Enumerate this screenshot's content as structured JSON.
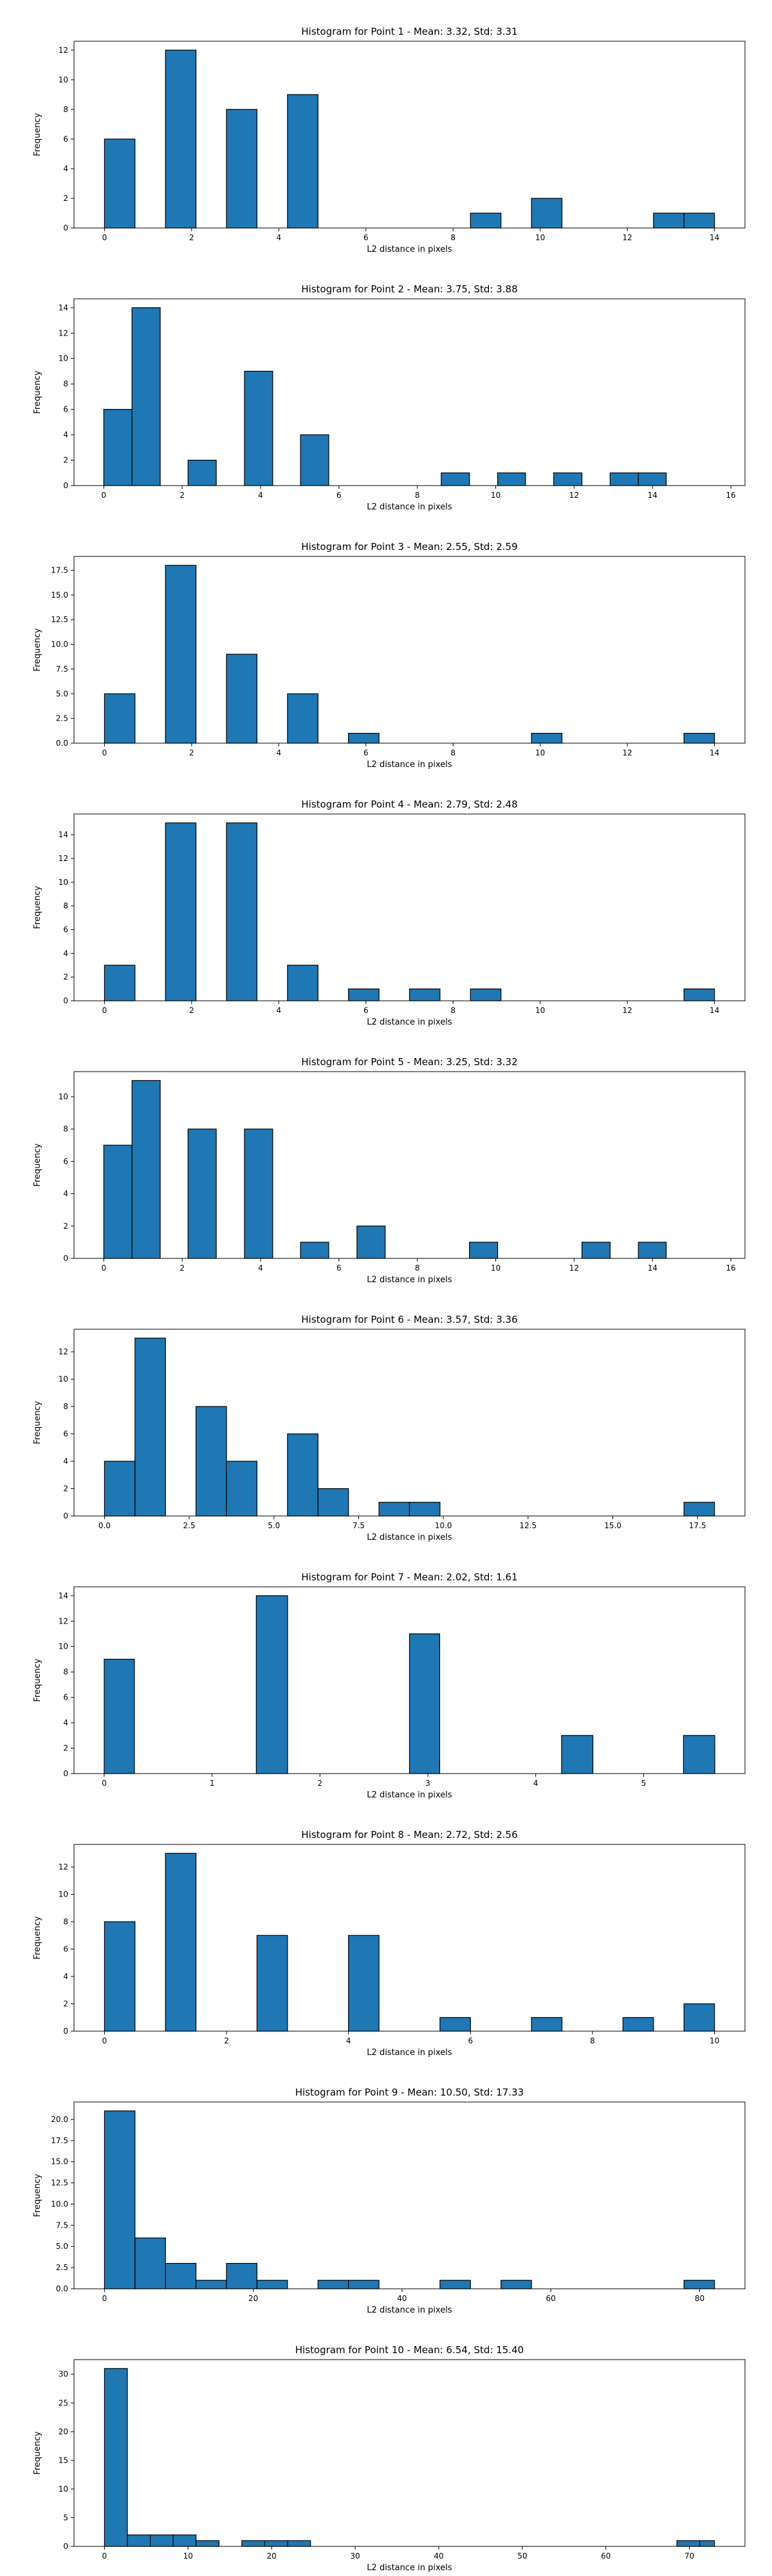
{
  "chart_data": [
    {
      "type": "bar",
      "title": "Histogram for Point 1 - Mean: 3.32, Std: 3.31",
      "xlabel": "L2 distance in pixels",
      "ylabel": "Frequency",
      "xlim": [
        -0.7,
        14.7
      ],
      "ylim": [
        0,
        12.6
      ],
      "xticks": [
        0,
        2,
        4,
        6,
        8,
        10,
        12,
        14
      ],
      "xtick_labels": [
        "0",
        "2",
        "4",
        "6",
        "8",
        "10",
        "12",
        "14"
      ],
      "yticks": [
        0,
        2,
        4,
        6,
        8,
        10,
        12
      ],
      "ytick_labels": [
        "0",
        "2",
        "4",
        "6",
        "8",
        "10",
        "12"
      ],
      "bar_color": "#1f77b4",
      "bars": [
        {
          "x0": 0.0,
          "x1": 0.7,
          "value": 6
        },
        {
          "x0": 1.4,
          "x1": 2.1,
          "value": 12
        },
        {
          "x0": 2.8,
          "x1": 3.5,
          "value": 8
        },
        {
          "x0": 4.2,
          "x1": 4.9,
          "value": 9
        },
        {
          "x0": 8.4,
          "x1": 9.1,
          "value": 1
        },
        {
          "x0": 9.8,
          "x1": 10.5,
          "value": 2
        },
        {
          "x0": 12.6,
          "x1": 13.3,
          "value": 1
        },
        {
          "x0": 13.3,
          "x1": 14.0,
          "value": 1
        }
      ]
    },
    {
      "type": "bar",
      "title": "Histogram for Point 2 - Mean: 3.75, Std: 3.88",
      "xlabel": "L2 distance in pixels",
      "ylabel": "Frequency",
      "xlim": [
        -0.76,
        16.36
      ],
      "ylim": [
        0,
        14.7
      ],
      "xticks": [
        0,
        2,
        4,
        6,
        8,
        10,
        12,
        14,
        16
      ],
      "xtick_labels": [
        "0",
        "2",
        "4",
        "6",
        "8",
        "10",
        "12",
        "14",
        "16"
      ],
      "yticks": [
        0,
        2,
        4,
        6,
        8,
        10,
        12,
        14
      ],
      "ytick_labels": [
        "0",
        "2",
        "4",
        "6",
        "8",
        "10",
        "12",
        "14"
      ],
      "bar_color": "#1f77b4",
      "bars": [
        {
          "x0": 0.0,
          "x1": 0.72,
          "value": 6
        },
        {
          "x0": 0.72,
          "x1": 1.44,
          "value": 14
        },
        {
          "x0": 2.15,
          "x1": 2.87,
          "value": 2
        },
        {
          "x0": 3.59,
          "x1": 4.31,
          "value": 9
        },
        {
          "x0": 5.02,
          "x1": 5.74,
          "value": 4
        },
        {
          "x0": 8.61,
          "x1": 9.33,
          "value": 1
        },
        {
          "x0": 10.05,
          "x1": 10.76,
          "value": 1
        },
        {
          "x0": 11.48,
          "x1": 12.2,
          "value": 1
        },
        {
          "x0": 12.92,
          "x1": 13.64,
          "value": 1
        },
        {
          "x0": 13.64,
          "x1": 14.35,
          "value": 1
        }
      ]
    },
    {
      "type": "bar",
      "title": "Histogram for Point 3 - Mean: 2.55, Std: 2.59",
      "xlabel": "L2 distance in pixels",
      "ylabel": "Frequency",
      "xlim": [
        -0.7,
        14.7
      ],
      "ylim": [
        0,
        18.9
      ],
      "xticks": [
        0,
        2,
        4,
        6,
        8,
        10,
        12,
        14
      ],
      "xtick_labels": [
        "0",
        "2",
        "4",
        "6",
        "8",
        "10",
        "12",
        "14"
      ],
      "yticks": [
        0,
        2.5,
        5,
        7.5,
        10,
        12.5,
        15,
        17.5
      ],
      "ytick_labels": [
        "0.0",
        "2.5",
        "5.0",
        "7.5",
        "10.0",
        "12.5",
        "15.0",
        "17.5"
      ],
      "bar_color": "#1f77b4",
      "bars": [
        {
          "x0": 0.0,
          "x1": 0.7,
          "value": 5
        },
        {
          "x0": 1.4,
          "x1": 2.1,
          "value": 18
        },
        {
          "x0": 2.8,
          "x1": 3.5,
          "value": 9
        },
        {
          "x0": 4.2,
          "x1": 4.9,
          "value": 5
        },
        {
          "x0": 5.6,
          "x1": 6.3,
          "value": 1
        },
        {
          "x0": 9.8,
          "x1": 10.5,
          "value": 1
        },
        {
          "x0": 13.3,
          "x1": 14.0,
          "value": 1
        }
      ]
    },
    {
      "type": "bar",
      "title": "Histogram for Point 4 - Mean: 2.79, Std: 2.48",
      "xlabel": "L2 distance in pixels",
      "ylabel": "Frequency",
      "xlim": [
        -0.7,
        14.7
      ],
      "ylim": [
        0,
        15.75
      ],
      "xticks": [
        0,
        2,
        4,
        6,
        8,
        10,
        12,
        14
      ],
      "xtick_labels": [
        "0",
        "2",
        "4",
        "6",
        "8",
        "10",
        "12",
        "14"
      ],
      "yticks": [
        0,
        2,
        4,
        6,
        8,
        10,
        12,
        14
      ],
      "ytick_labels": [
        "0",
        "2",
        "4",
        "6",
        "8",
        "10",
        "12",
        "14"
      ],
      "bar_color": "#1f77b4",
      "bars": [
        {
          "x0": 0.0,
          "x1": 0.7,
          "value": 3
        },
        {
          "x0": 1.4,
          "x1": 2.1,
          "value": 15
        },
        {
          "x0": 2.8,
          "x1": 3.5,
          "value": 15
        },
        {
          "x0": 4.2,
          "x1": 4.9,
          "value": 3
        },
        {
          "x0": 5.6,
          "x1": 6.3,
          "value": 1
        },
        {
          "x0": 7.0,
          "x1": 7.7,
          "value": 1
        },
        {
          "x0": 8.4,
          "x1": 9.1,
          "value": 1
        },
        {
          "x0": 13.3,
          "x1": 14.0,
          "value": 1
        }
      ]
    },
    {
      "type": "bar",
      "title": "Histogram for Point 5 - Mean: 3.25, Std: 3.32",
      "xlabel": "L2 distance in pixels",
      "ylabel": "Frequency",
      "xlim": [
        -0.76,
        16.36
      ],
      "ylim": [
        0,
        11.55
      ],
      "xticks": [
        0,
        2,
        4,
        6,
        8,
        10,
        12,
        14,
        16
      ],
      "xtick_labels": [
        "0",
        "2",
        "4",
        "6",
        "8",
        "10",
        "12",
        "14",
        "16"
      ],
      "yticks": [
        0,
        2,
        4,
        6,
        8,
        10
      ],
      "ytick_labels": [
        "0",
        "2",
        "4",
        "6",
        "8",
        "10"
      ],
      "bar_color": "#1f77b4",
      "bars": [
        {
          "x0": 0.0,
          "x1": 0.72,
          "value": 7
        },
        {
          "x0": 0.72,
          "x1": 1.44,
          "value": 11
        },
        {
          "x0": 2.15,
          "x1": 2.87,
          "value": 8
        },
        {
          "x0": 3.59,
          "x1": 4.31,
          "value": 8
        },
        {
          "x0": 5.02,
          "x1": 5.74,
          "value": 1
        },
        {
          "x0": 6.46,
          "x1": 7.18,
          "value": 2
        },
        {
          "x0": 9.33,
          "x1": 10.05,
          "value": 1
        },
        {
          "x0": 12.2,
          "x1": 12.92,
          "value": 1
        },
        {
          "x0": 13.64,
          "x1": 14.35,
          "value": 1
        }
      ]
    },
    {
      "type": "bar",
      "title": "Histogram for Point 6 - Mean: 3.57, Std: 3.36",
      "xlabel": "L2 distance in pixels",
      "ylabel": "Frequency",
      "xlim": [
        -0.9,
        18.9
      ],
      "ylim": [
        0,
        13.65
      ],
      "xticks": [
        0,
        2.5,
        5,
        7.5,
        10,
        12.5,
        15,
        17.5
      ],
      "xtick_labels": [
        "0.0",
        "2.5",
        "5.0",
        "7.5",
        "10.0",
        "12.5",
        "15.0",
        "17.5"
      ],
      "yticks": [
        0,
        2,
        4,
        6,
        8,
        10,
        12
      ],
      "ytick_labels": [
        "0",
        "2",
        "4",
        "6",
        "8",
        "10",
        "12"
      ],
      "bar_color": "#1f77b4",
      "bars": [
        {
          "x0": 0.0,
          "x1": 0.9,
          "value": 4
        },
        {
          "x0": 0.9,
          "x1": 1.8,
          "value": 13
        },
        {
          "x0": 2.7,
          "x1": 3.6,
          "value": 8
        },
        {
          "x0": 3.6,
          "x1": 4.5,
          "value": 4
        },
        {
          "x0": 5.4,
          "x1": 6.3,
          "value": 6
        },
        {
          "x0": 6.3,
          "x1": 7.2,
          "value": 2
        },
        {
          "x0": 8.1,
          "x1": 9.0,
          "value": 1
        },
        {
          "x0": 9.0,
          "x1": 9.9,
          "value": 1
        },
        {
          "x0": 17.1,
          "x1": 18.0,
          "value": 1
        }
      ]
    },
    {
      "type": "bar",
      "title": "Histogram for Point 7 - Mean: 2.02, Std: 1.61",
      "xlabel": "L2 distance in pixels",
      "ylabel": "Frequency",
      "xlim": [
        -0.28,
        5.94
      ],
      "ylim": [
        0,
        14.7
      ],
      "xticks": [
        0,
        1,
        2,
        3,
        4,
        5
      ],
      "xtick_labels": [
        "0",
        "1",
        "2",
        "3",
        "4",
        "5"
      ],
      "yticks": [
        0,
        2,
        4,
        6,
        8,
        10,
        12,
        14
      ],
      "ytick_labels": [
        "0",
        "2",
        "4",
        "6",
        "8",
        "10",
        "12",
        "14"
      ],
      "bar_color": "#1f77b4",
      "bars": [
        {
          "x0": 0.0,
          "x1": 0.28,
          "value": 9
        },
        {
          "x0": 1.41,
          "x1": 1.7,
          "value": 14
        },
        {
          "x0": 2.83,
          "x1": 3.11,
          "value": 11
        },
        {
          "x0": 4.24,
          "x1": 4.53,
          "value": 3
        },
        {
          "x0": 5.37,
          "x1": 5.66,
          "value": 3
        }
      ]
    },
    {
      "type": "bar",
      "title": "Histogram for Point 8 - Mean: 2.72, Std: 2.56",
      "xlabel": "L2 distance in pixels",
      "ylabel": "Frequency",
      "xlim": [
        -0.5,
        10.5
      ],
      "ylim": [
        0,
        13.65
      ],
      "xticks": [
        0,
        2,
        4,
        6,
        8,
        10
      ],
      "xtick_labels": [
        "0",
        "2",
        "4",
        "6",
        "8",
        "10"
      ],
      "yticks": [
        0,
        2,
        4,
        6,
        8,
        10,
        12
      ],
      "ytick_labels": [
        "0",
        "2",
        "4",
        "6",
        "8",
        "10",
        "12"
      ],
      "bar_color": "#1f77b4",
      "bars": [
        {
          "x0": 0.0,
          "x1": 0.5,
          "value": 8
        },
        {
          "x0": 1.0,
          "x1": 1.5,
          "value": 13
        },
        {
          "x0": 2.5,
          "x1": 3.0,
          "value": 7
        },
        {
          "x0": 4.0,
          "x1": 4.5,
          "value": 7
        },
        {
          "x0": 5.5,
          "x1": 6.0,
          "value": 1
        },
        {
          "x0": 7.0,
          "x1": 7.5,
          "value": 1
        },
        {
          "x0": 8.5,
          "x1": 9.0,
          "value": 1
        },
        {
          "x0": 9.5,
          "x1": 10.0,
          "value": 2
        }
      ]
    },
    {
      "type": "bar",
      "title": "Histogram for Point 9 - Mean: 10.50, Std: 17.33",
      "xlabel": "L2 distance in pixels",
      "ylabel": "Frequency",
      "xlim": [
        -4.1,
        86.1
      ],
      "ylim": [
        0,
        22.05
      ],
      "xticks": [
        0,
        20,
        40,
        60,
        80
      ],
      "xtick_labels": [
        "0",
        "20",
        "40",
        "60",
        "80"
      ],
      "yticks": [
        0,
        2.5,
        5,
        7.5,
        10,
        12.5,
        15,
        17.5,
        20
      ],
      "ytick_labels": [
        "0.0",
        "2.5",
        "5.0",
        "7.5",
        "10.0",
        "12.5",
        "15.0",
        "17.5",
        "20.0"
      ],
      "bar_color": "#1f77b4",
      "bars": [
        {
          "x0": 0.0,
          "x1": 4.1,
          "value": 21
        },
        {
          "x0": 4.1,
          "x1": 8.2,
          "value": 6
        },
        {
          "x0": 8.2,
          "x1": 12.3,
          "value": 3
        },
        {
          "x0": 12.3,
          "x1": 16.4,
          "value": 1
        },
        {
          "x0": 16.4,
          "x1": 20.5,
          "value": 3
        },
        {
          "x0": 20.5,
          "x1": 24.6,
          "value": 1
        },
        {
          "x0": 28.7,
          "x1": 32.8,
          "value": 1
        },
        {
          "x0": 32.8,
          "x1": 36.9,
          "value": 1
        },
        {
          "x0": 45.1,
          "x1": 49.2,
          "value": 1
        },
        {
          "x0": 53.3,
          "x1": 57.4,
          "value": 1
        },
        {
          "x0": 77.9,
          "x1": 82.0,
          "value": 1
        }
      ]
    },
    {
      "type": "bar",
      "title": "Histogram for Point 10 - Mean: 6.54, Std: 15.40",
      "xlabel": "L2 distance in pixels",
      "ylabel": "Frequency",
      "xlim": [
        -3.65,
        76.65
      ],
      "ylim": [
        0,
        32.55
      ],
      "xticks": [
        0,
        10,
        20,
        30,
        40,
        50,
        60,
        70
      ],
      "xtick_labels": [
        "0",
        "10",
        "20",
        "30",
        "40",
        "50",
        "60",
        "70"
      ],
      "yticks": [
        0,
        5,
        10,
        15,
        20,
        25,
        30
      ],
      "ytick_labels": [
        "0",
        "5",
        "10",
        "15",
        "20",
        "25",
        "30"
      ],
      "bar_color": "#1f77b4",
      "bars": [
        {
          "x0": 0.0,
          "x1": 2.74,
          "value": 31
        },
        {
          "x0": 2.74,
          "x1": 5.48,
          "value": 2
        },
        {
          "x0": 5.48,
          "x1": 8.22,
          "value": 2
        },
        {
          "x0": 8.22,
          "x1": 10.96,
          "value": 2
        },
        {
          "x0": 10.96,
          "x1": 13.7,
          "value": 1
        },
        {
          "x0": 16.44,
          "x1": 19.18,
          "value": 1
        },
        {
          "x0": 19.18,
          "x1": 21.92,
          "value": 1
        },
        {
          "x0": 21.92,
          "x1": 24.66,
          "value": 1
        },
        {
          "x0": 68.5,
          "x1": 71.24,
          "value": 1
        },
        {
          "x0": 71.24,
          "x1": 73.0,
          "value": 1
        }
      ]
    }
  ]
}
